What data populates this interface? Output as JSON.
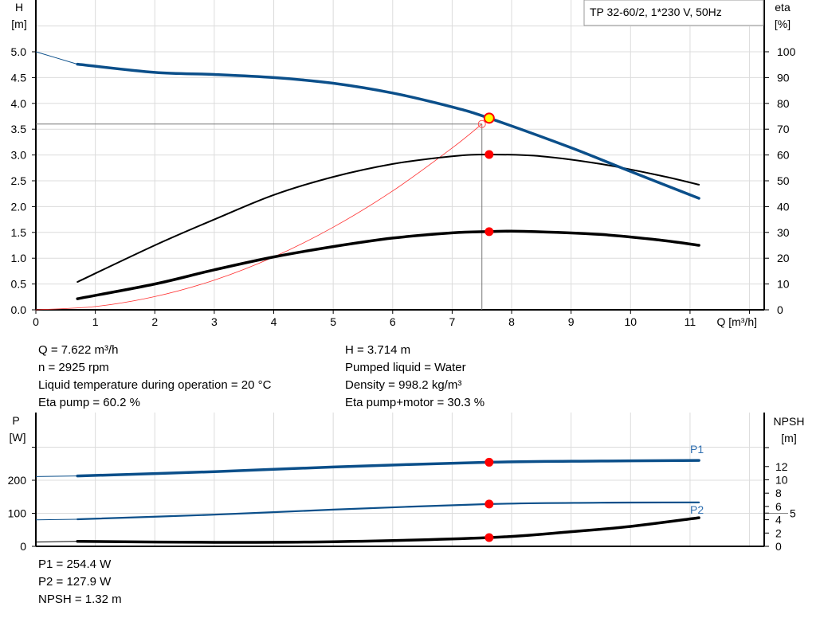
{
  "chart_data": [
    {
      "type": "line",
      "title": "TP 32-60/2, 1*230 V, 50Hz",
      "xlabel": "Q [m³/h]",
      "ylabel_left": [
        "H",
        "[m]"
      ],
      "ylabel_right": [
        "eta",
        "[%]"
      ],
      "xlim": [
        0,
        12
      ],
      "ylim_left": [
        0,
        6
      ],
      "ylim_right": [
        0,
        120
      ],
      "x_ticks": [
        "0",
        "1",
        "2",
        "3",
        "4",
        "5",
        "6",
        "7",
        "8",
        "9",
        "10",
        "11"
      ],
      "y_ticks_left": [
        "0.0",
        "0.5",
        "1.0",
        "1.5",
        "2.0",
        "2.5",
        "3.0",
        "3.5",
        "4.0",
        "4.5",
        "5.0"
      ],
      "y_ticks_right": [
        "0",
        "10",
        "20",
        "30",
        "40",
        "50",
        "60",
        "70",
        "80",
        "90",
        "100"
      ],
      "grid": true,
      "series": [
        {
          "key": "H",
          "axis": "left",
          "color": "#0b4f8a",
          "points": [
            [
              0,
              5.0
            ],
            [
              0.7,
              4.76
            ],
            [
              2,
              4.6
            ],
            [
              3,
              4.56
            ],
            [
              4,
              4.5
            ],
            [
              5,
              4.39
            ],
            [
              6,
              4.2
            ],
            [
              7,
              3.93
            ],
            [
              7.622,
              3.714
            ],
            [
              9,
              3.14
            ],
            [
              10,
              2.68
            ],
            [
              11.15,
              2.16
            ]
          ]
        },
        {
          "key": "eta_pump",
          "axis": "right",
          "color": "#000000",
          "points": [
            [
              0.7,
              10.8
            ],
            [
              2,
              25
            ],
            [
              3,
              35
            ],
            [
              4,
              44.5
            ],
            [
              5,
              51.5
            ],
            [
              6,
              56.5
            ],
            [
              7,
              59.5
            ],
            [
              7.622,
              60.2
            ],
            [
              8.5,
              59.5
            ],
            [
              9.5,
              56.5
            ],
            [
              10.5,
              52
            ],
            [
              11.15,
              48.5
            ]
          ]
        },
        {
          "key": "eta_pump_motor",
          "axis": "right",
          "color": "#000000",
          "points": [
            [
              0.7,
              4.3
            ],
            [
              2,
              10
            ],
            [
              3,
              15.5
            ],
            [
              4,
              20.5
            ],
            [
              5,
              24.5
            ],
            [
              6,
              27.8
            ],
            [
              7,
              29.8
            ],
            [
              7.622,
              30.3
            ],
            [
              8.2,
              30.4
            ],
            [
              9.5,
              29.2
            ],
            [
              10.5,
              27
            ],
            [
              11.15,
              25
            ]
          ]
        },
        {
          "key": "system_curve",
          "axis": "left",
          "color": "#ff3030",
          "points": [
            [
              0,
              0
            ],
            [
              1,
              0.064
            ],
            [
              2,
              0.256
            ],
            [
              3,
              0.576
            ],
            [
              4,
              1.024
            ],
            [
              5,
              1.6
            ],
            [
              6,
              2.304
            ],
            [
              7,
              3.136
            ],
            [
              7.5,
              3.6
            ]
          ]
        }
      ],
      "duty_point": {
        "Q": 7.5,
        "H": 3.6
      },
      "operating_point": {
        "Q": 7.622,
        "H": 3.714,
        "eta_pump": 60.2,
        "eta_pump_motor": 30.3
      }
    },
    {
      "type": "line",
      "xlim": [
        0,
        12
      ],
      "ylabel_left": [
        "P",
        "[W]"
      ],
      "ylabel_right": [
        "NPSH",
        "[m]"
      ],
      "ylim_left": [
        0,
        405
      ],
      "ylim_right": [
        0,
        20.1
      ],
      "y_ticks_left": [
        "0",
        "100",
        "200"
      ],
      "y_ticks_right": [
        "0",
        "2",
        "4",
        "5",
        "6",
        "8",
        "10",
        "12"
      ],
      "grid": true,
      "series": [
        {
          "name": "P1",
          "axis": "left",
          "color": "#0b4f8a",
          "points": [
            [
              0,
              211
            ],
            [
              0.7,
              213
            ],
            [
              3,
              226
            ],
            [
              5,
              240
            ],
            [
              7.622,
              254.4
            ],
            [
              9.5,
              258
            ],
            [
              11.15,
              260
            ]
          ]
        },
        {
          "name": "P2",
          "axis": "left",
          "color": "#0b4f8a",
          "points": [
            [
              0,
              80
            ],
            [
              0.7,
              82
            ],
            [
              3,
              96
            ],
            [
              5,
              111
            ],
            [
              7.622,
              127.9
            ],
            [
              9.5,
              132
            ],
            [
              11.15,
              133
            ]
          ]
        },
        {
          "key": "NPSH",
          "axis": "right",
          "color": "#000000",
          "points": [
            [
              0,
              0.65
            ],
            [
              0.7,
              0.75
            ],
            [
              3,
              0.6
            ],
            [
              5,
              0.7
            ],
            [
              7.622,
              1.32
            ],
            [
              9,
              2.2
            ],
            [
              10,
              3.0
            ],
            [
              11.15,
              4.3
            ]
          ]
        }
      ],
      "operating_point": {
        "Q": 7.622,
        "P1": 254.4,
        "P2": 127.9,
        "NPSH": 1.32
      }
    }
  ],
  "info_top_left": [
    "Q = 7.622 m³/h",
    "n = 2925 rpm",
    "Liquid temperature during operation = 20 °C",
    "Eta pump = 60.2 %"
  ],
  "info_top_right": [
    "H = 3.714 m",
    "Pumped liquid = Water",
    "Density = 998.2 kg/m³",
    "Eta pump+motor = 30.3 %"
  ],
  "info_bottom": [
    "P1 = 254.4 W",
    "P2 = 127.9 W",
    "NPSH = 1.32 m"
  ]
}
